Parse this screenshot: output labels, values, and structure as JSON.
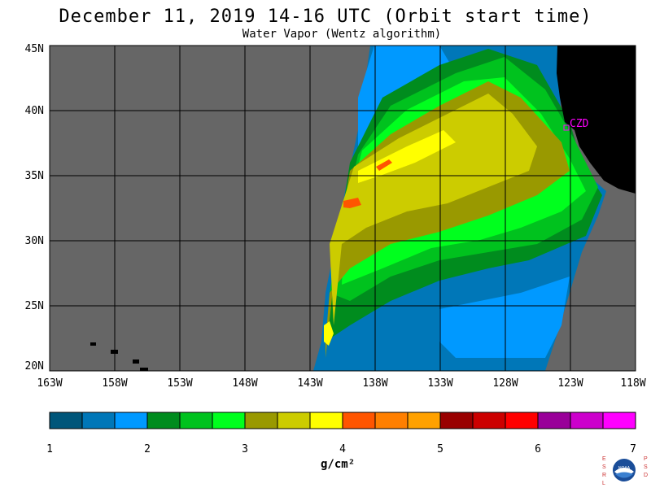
{
  "title": "December 11, 2019  14-16 UTC  (Orbit start time)",
  "subtitle": "Water Vapor (Wentz algorithm)",
  "station": "CZD",
  "lat_labels": [
    "45N",
    "40N",
    "35N",
    "30N",
    "25N",
    "20N"
  ],
  "lon_labels": [
    "163W",
    "158W",
    "153W",
    "148W",
    "143W",
    "138W",
    "133W",
    "128W",
    "123W",
    "118W"
  ],
  "colorbar": {
    "ticks": [
      "1",
      "2",
      "3",
      "4",
      "5",
      "6",
      "7"
    ],
    "unit": "g/cm²",
    "colors": [
      "#00567a",
      "#0077b8",
      "#0099ff",
      "#008c1e",
      "#00c21e",
      "#00ff1e",
      "#999900",
      "#cccc00",
      "#ffff00",
      "#ff5500",
      "#ff7f00",
      "#ffa100",
      "#990000",
      "#cc0000",
      "#ff0000",
      "#990099",
      "#cc00cc",
      "#ff00ff"
    ]
  },
  "colors": {
    "no_data": "#666666",
    "land": "#000000",
    "station": "#ff00ff"
  },
  "logo": {
    "left_letters": "ESRL",
    "right_letters": "PSD",
    "center": "NOAA"
  }
}
